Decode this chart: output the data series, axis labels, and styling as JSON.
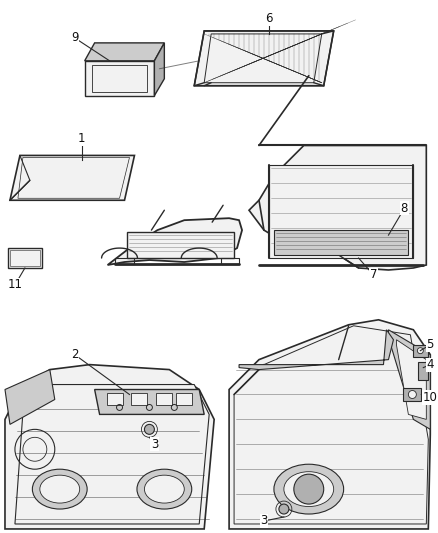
{
  "background_color": "#ffffff",
  "figure_width": 4.38,
  "figure_height": 5.33,
  "dpi": 100,
  "line_color": "#2a2a2a",
  "text_color": "#111111",
  "font_size": 8.5,
  "gray_fill": "#e8e8e8",
  "dark_gray": "#b0b0b0",
  "mid_gray": "#cccccc",
  "light_gray": "#f2f2f2"
}
